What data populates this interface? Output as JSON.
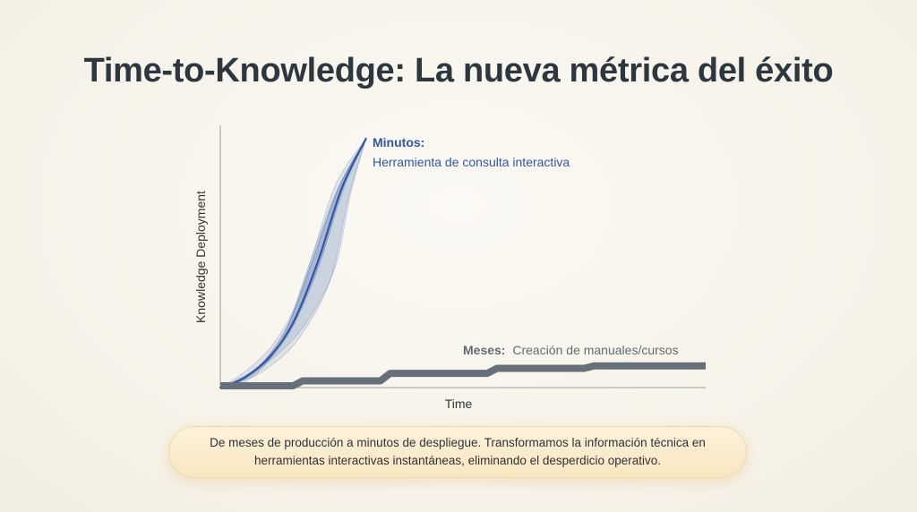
{
  "title": "Time-to-Knowledge: La nueva métrica del éxito",
  "chart_data": {
    "type": "line",
    "xlabel": "Time",
    "ylabel": "Knowledge Deployment",
    "grid": false,
    "series": [
      {
        "name": "Minutos:",
        "description": "Herramienta de consulta interactiva",
        "shape": "steep-s-curve",
        "color": "#2f57a8",
        "x": [
          0,
          0.05,
          0.1,
          0.15,
          0.2,
          0.25,
          0.3
        ],
        "y": [
          0,
          0.04,
          0.12,
          0.26,
          0.5,
          0.8,
          1.0
        ]
      },
      {
        "name": "Meses:",
        "description": "Creación de manuales/cursos",
        "shape": "slow-step",
        "color": "#65707a",
        "x": [
          0,
          0.15,
          0.17,
          0.33,
          0.35,
          0.55,
          0.57,
          0.75,
          0.77,
          1.0
        ],
        "y": [
          0,
          0,
          0.02,
          0.02,
          0.05,
          0.05,
          0.07,
          0.07,
          0.08,
          0.08
        ]
      }
    ]
  },
  "caption": "De meses de producción a minutos de despliegue. Transformamos la información técnica en herramientas interactivas instantáneas, eliminando el desperdicio operativo."
}
